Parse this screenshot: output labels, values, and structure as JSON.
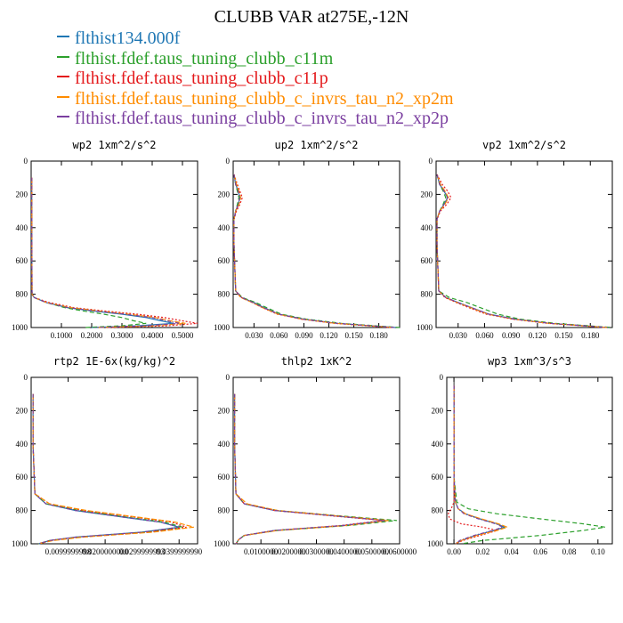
{
  "title": "CLUBB VAR at275E,-12N",
  "series": [
    {
      "name": "flthist134.000f",
      "color": "#1f77b4",
      "dash": ""
    },
    {
      "name": "flthist.fdef.taus_tuning_clubb_c11m",
      "color": "#2ca02c",
      "dash": "5,3"
    },
    {
      "name": "flthist.fdef.taus_tuning_clubb_c11p",
      "color": "#e41a1c",
      "dash": "2,2"
    },
    {
      "name": "flthist.fdef.taus_tuning_clubb_c_invrs_tau_n2_xp2m",
      "color": "#ff8c00",
      "dash": "6,2"
    },
    {
      "name": "flthist.fdef.taus_tuning_clubb_c_invrs_tau_n2_xp2p",
      "color": "#7b3fa0",
      "dash": "4,2,1,2"
    }
  ],
  "chart_data": [
    {
      "type": "line",
      "title": "wp2  1xm^2/s^2",
      "xlim": [
        0,
        0.55
      ],
      "ylim": [
        1000,
        0
      ],
      "xticks": [
        0.1,
        0.2,
        0.3,
        0.4,
        0.5
      ],
      "xtick_labels": [
        "0.1000",
        "0.2000",
        "0.3000",
        "0.4000",
        "0.5000"
      ],
      "yticks": [
        0,
        200,
        400,
        600,
        800,
        1000
      ],
      "y": [
        100,
        300,
        800,
        820,
        850,
        880,
        900,
        920,
        940,
        960,
        975,
        990,
        1000
      ],
      "series": [
        [
          0.002,
          0.002,
          0.003,
          0.01,
          0.05,
          0.12,
          0.2,
          0.3,
          0.38,
          0.43,
          0.47,
          0.35,
          0.2
        ],
        [
          0.002,
          0.002,
          0.003,
          0.01,
          0.05,
          0.11,
          0.17,
          0.24,
          0.3,
          0.34,
          0.38,
          0.3,
          0.18
        ],
        [
          0.002,
          0.002,
          0.003,
          0.01,
          0.06,
          0.14,
          0.24,
          0.35,
          0.44,
          0.5,
          0.55,
          0.45,
          0.25
        ],
        [
          0.002,
          0.002,
          0.003,
          0.01,
          0.05,
          0.13,
          0.22,
          0.32,
          0.41,
          0.46,
          0.51,
          0.4,
          0.22
        ],
        [
          0.002,
          0.002,
          0.003,
          0.01,
          0.05,
          0.12,
          0.21,
          0.31,
          0.4,
          0.45,
          0.49,
          0.38,
          0.21
        ]
      ]
    },
    {
      "type": "line",
      "title": "up2  1xm^2/s^2",
      "xlim": [
        0.005,
        0.205
      ],
      "ylim": [
        1000,
        0
      ],
      "xticks": [
        0.03,
        0.06,
        0.09,
        0.12,
        0.15,
        0.18
      ],
      "xtick_labels": [
        "0.030",
        "0.060",
        "0.090",
        "0.120",
        "0.150",
        "0.180"
      ],
      "yticks": [
        0,
        200,
        400,
        600,
        800,
        1000
      ],
      "y": [
        80,
        140,
        180,
        220,
        260,
        300,
        350,
        500,
        780,
        820,
        850,
        880,
        920,
        950,
        975,
        1000
      ],
      "series": [
        [
          0.006,
          0.008,
          0.011,
          0.013,
          0.011,
          0.008,
          0.006,
          0.006,
          0.008,
          0.015,
          0.03,
          0.042,
          0.06,
          0.09,
          0.13,
          0.2
        ],
        [
          0.006,
          0.008,
          0.01,
          0.012,
          0.01,
          0.008,
          0.006,
          0.006,
          0.008,
          0.016,
          0.032,
          0.045,
          0.063,
          0.093,
          0.135,
          0.205
        ],
        [
          0.006,
          0.01,
          0.013,
          0.016,
          0.013,
          0.009,
          0.006,
          0.006,
          0.008,
          0.015,
          0.028,
          0.04,
          0.058,
          0.087,
          0.127,
          0.195
        ],
        [
          0.006,
          0.009,
          0.012,
          0.014,
          0.012,
          0.008,
          0.006,
          0.006,
          0.008,
          0.014,
          0.028,
          0.04,
          0.059,
          0.088,
          0.128,
          0.198
        ],
        [
          0.006,
          0.008,
          0.011,
          0.013,
          0.011,
          0.008,
          0.006,
          0.006,
          0.008,
          0.015,
          0.029,
          0.041,
          0.06,
          0.089,
          0.13,
          0.2
        ]
      ]
    },
    {
      "type": "line",
      "title": "vp2  1xm^2/s^2",
      "xlim": [
        0.005,
        0.205
      ],
      "ylim": [
        1000,
        0
      ],
      "xticks": [
        0.03,
        0.06,
        0.09,
        0.12,
        0.15,
        0.18
      ],
      "xtick_labels": [
        "0.030",
        "0.060",
        "0.090",
        "0.120",
        "0.150",
        "0.180"
      ],
      "yticks": [
        0,
        200,
        400,
        600,
        800,
        1000
      ],
      "y": [
        80,
        140,
        180,
        220,
        260,
        300,
        350,
        500,
        780,
        820,
        850,
        880,
        920,
        950,
        975,
        1000
      ],
      "series": [
        [
          0.006,
          0.009,
          0.014,
          0.018,
          0.014,
          0.009,
          0.006,
          0.006,
          0.008,
          0.016,
          0.03,
          0.045,
          0.065,
          0.095,
          0.135,
          0.2
        ],
        [
          0.006,
          0.009,
          0.013,
          0.016,
          0.013,
          0.009,
          0.006,
          0.006,
          0.008,
          0.02,
          0.04,
          0.055,
          0.075,
          0.1,
          0.14,
          0.205
        ],
        [
          0.006,
          0.012,
          0.018,
          0.022,
          0.017,
          0.01,
          0.006,
          0.006,
          0.008,
          0.015,
          0.028,
          0.042,
          0.062,
          0.092,
          0.132,
          0.198
        ],
        [
          0.006,
          0.01,
          0.015,
          0.019,
          0.015,
          0.009,
          0.006,
          0.006,
          0.008,
          0.016,
          0.029,
          0.044,
          0.064,
          0.093,
          0.133,
          0.199
        ],
        [
          0.006,
          0.009,
          0.014,
          0.018,
          0.014,
          0.009,
          0.006,
          0.006,
          0.008,
          0.016,
          0.03,
          0.045,
          0.065,
          0.094,
          0.134,
          0.2
        ]
      ]
    },
    {
      "type": "line",
      "title": "rtp2  1E-6x(kg/kg)^2",
      "xlim": [
        0,
        0.045
      ],
      "ylim": [
        1000,
        0
      ],
      "xticks": [
        0.01,
        0.02,
        0.03,
        0.04
      ],
      "xtick_labels": [
        "0.0099999998",
        "0.0200000000",
        "0.0299999993",
        "0.0399999990"
      ],
      "yticks": [
        0,
        200,
        400,
        600,
        800,
        1000
      ],
      "y": [
        100,
        400,
        700,
        760,
        800,
        840,
        870,
        900,
        930,
        960,
        980,
        1000
      ],
      "series": [
        [
          0.0005,
          0.0005,
          0.001,
          0.004,
          0.012,
          0.025,
          0.035,
          0.04,
          0.03,
          0.012,
          0.005,
          0.002
        ],
        [
          0.0005,
          0.0005,
          0.001,
          0.004,
          0.013,
          0.026,
          0.036,
          0.041,
          0.031,
          0.013,
          0.005,
          0.002
        ],
        [
          0.0005,
          0.0005,
          0.001,
          0.005,
          0.014,
          0.028,
          0.038,
          0.042,
          0.032,
          0.013,
          0.005,
          0.002
        ],
        [
          0.0005,
          0.0005,
          0.001,
          0.005,
          0.015,
          0.029,
          0.039,
          0.044,
          0.033,
          0.014,
          0.006,
          0.002
        ],
        [
          0.0005,
          0.0005,
          0.001,
          0.004,
          0.012,
          0.025,
          0.035,
          0.04,
          0.03,
          0.012,
          0.005,
          0.002
        ]
      ]
    },
    {
      "type": "line",
      "title": "thlp2  1xK^2",
      "xlim": [
        0,
        0.06
      ],
      "ylim": [
        1000,
        0
      ],
      "xticks": [
        0.01,
        0.02,
        0.03,
        0.04,
        0.05,
        0.06
      ],
      "xtick_labels": [
        "0.0100000",
        "0.0200000",
        "0.0300000",
        "0.0400000",
        "0.0500000",
        "0.0600000"
      ],
      "yticks": [
        0,
        200,
        400,
        600,
        800,
        1000
      ],
      "y": [
        100,
        400,
        700,
        760,
        800,
        830,
        860,
        890,
        920,
        950,
        975,
        1000
      ],
      "series": [
        [
          0.0005,
          0.0005,
          0.001,
          0.004,
          0.015,
          0.035,
          0.055,
          0.04,
          0.015,
          0.004,
          0.002,
          0.001
        ],
        [
          0.0005,
          0.0005,
          0.001,
          0.004,
          0.016,
          0.037,
          0.059,
          0.042,
          0.016,
          0.004,
          0.002,
          0.001
        ],
        [
          0.0005,
          0.0005,
          0.001,
          0.004,
          0.015,
          0.034,
          0.054,
          0.039,
          0.015,
          0.004,
          0.002,
          0.001
        ],
        [
          0.0005,
          0.0005,
          0.001,
          0.005,
          0.016,
          0.036,
          0.056,
          0.041,
          0.016,
          0.004,
          0.002,
          0.001
        ],
        [
          0.0005,
          0.0005,
          0.001,
          0.004,
          0.015,
          0.035,
          0.055,
          0.04,
          0.015,
          0.004,
          0.002,
          0.001
        ]
      ]
    },
    {
      "type": "line",
      "title": "wp3  1xm^3/s^3",
      "xlim": [
        -0.005,
        0.11
      ],
      "ylim": [
        1000,
        0
      ],
      "xticks": [
        0.0,
        0.02,
        0.04,
        0.06,
        0.08,
        0.1
      ],
      "xtick_labels": [
        "0.00",
        "0.02",
        "0.04",
        "0.06",
        "0.08",
        "0.10"
      ],
      "yticks": [
        0,
        200,
        400,
        600,
        800,
        1000
      ],
      "y": [
        50,
        300,
        600,
        750,
        790,
        820,
        850,
        880,
        900,
        920,
        950,
        980,
        1000
      ],
      "series": [
        [
          0.0,
          0.0,
          0.0,
          0.001,
          0.003,
          0.008,
          0.018,
          0.03,
          0.035,
          0.028,
          0.015,
          0.005,
          0.001
        ],
        [
          0.0,
          0.0,
          0.0,
          0.002,
          0.01,
          0.03,
          0.06,
          0.09,
          0.105,
          0.09,
          0.06,
          0.02,
          0.005
        ],
        [
          0.0,
          0.0,
          0.0,
          0.0,
          -0.002,
          -0.004,
          -0.003,
          0.005,
          0.02,
          0.03,
          0.018,
          0.006,
          0.001
        ],
        [
          0.0,
          0.0,
          0.0,
          0.001,
          0.003,
          0.008,
          0.019,
          0.031,
          0.037,
          0.03,
          0.016,
          0.005,
          0.001
        ],
        [
          0.0,
          0.0,
          0.0,
          0.001,
          0.003,
          0.007,
          0.017,
          0.029,
          0.034,
          0.027,
          0.014,
          0.004,
          0.001
        ]
      ]
    }
  ]
}
